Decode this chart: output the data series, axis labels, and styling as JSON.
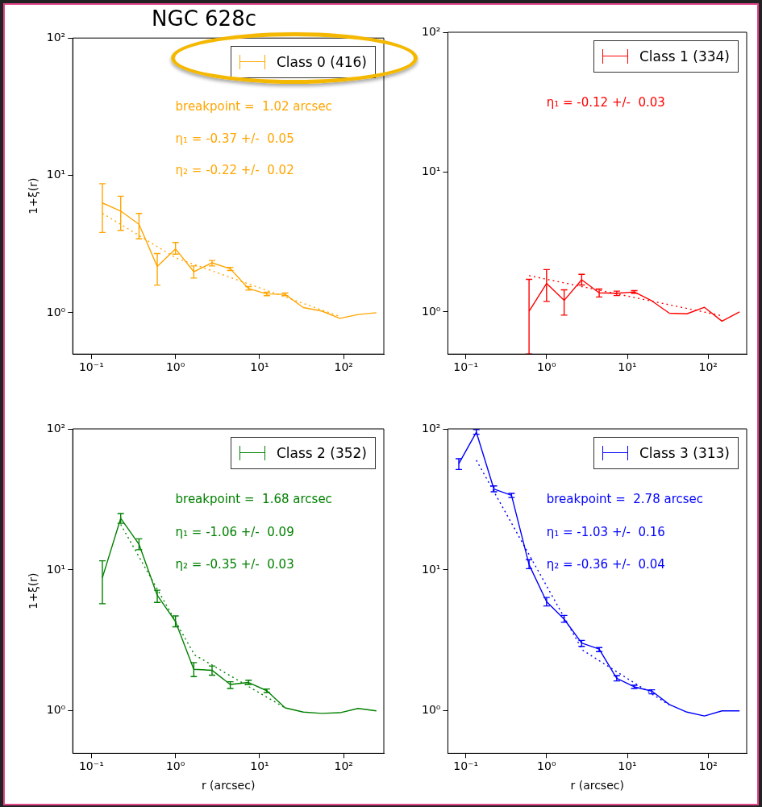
{
  "chart_data": [
    {
      "type": "line",
      "title": "NGC 628c",
      "ylabel": "1+ξ(r)",
      "xlim": [
        0.06,
        300
      ],
      "ylim": [
        0.5,
        100
      ],
      "log": "xy",
      "grid": false,
      "legend": "top right",
      "marker": "none",
      "xticks": [
        {
          "value": 0.1,
          "label": "10⁻¹"
        },
        {
          "value": 1,
          "label": "10⁰"
        },
        {
          "value": 10,
          "label": "10¹"
        },
        {
          "value": 100,
          "label": "10²"
        }
      ],
      "yticks": [
        {
          "value": 1,
          "label": "10⁰"
        },
        {
          "value": 10,
          "label": "10¹"
        },
        {
          "value": 100,
          "label": "10²"
        }
      ],
      "annotations": [
        "breakpoint =  1.02 arcsec",
        "η₁ = -0.37 +/-  0.05",
        "η₂ = -0.22 +/-  0.02"
      ],
      "series": [
        {
          "name": "Class 0 (416)",
          "color": "#ffa500",
          "line_style": "solid",
          "x": [
            0.135,
            0.223,
            0.368,
            0.607,
            1.0,
            1.65,
            2.72,
            4.48,
            7.39,
            12.18,
            20.1,
            33.1,
            54.6,
            90.0,
            148.4,
            244.7
          ],
          "values": [
            6.3,
            5.5,
            4.4,
            2.17,
            2.92,
            1.99,
            2.31,
            2.09,
            1.5,
            1.37,
            1.36,
            1.09,
            1.03,
            0.91,
            0.97,
            1.0
          ],
          "errors": [
            [
              3.84,
              8.7
            ],
            [
              3.98,
              7.05
            ],
            [
              3.45,
              5.28
            ],
            [
              1.59,
              2.7
            ],
            [
              2.67,
              3.25
            ],
            [
              1.79,
              2.19
            ],
            [
              2.19,
              2.4
            ],
            [
              2.03,
              2.14
            ],
            [
              1.46,
              1.55
            ],
            [
              1.33,
              1.41
            ],
            [
              1.33,
              1.39
            ],
            null,
            null,
            null,
            null,
            null
          ]
        },
        {
          "color": "#ffa500",
          "line_style": "dotted",
          "x": [
            0.135,
            1.02,
            90.0
          ],
          "values": [
            5.3,
            2.5,
            0.94
          ]
        }
      ]
    },
    {
      "type": "line",
      "xlim": [
        0.06,
        300
      ],
      "ylim": [
        0.5,
        100
      ],
      "log": "xy",
      "grid": false,
      "legend": "top right",
      "marker": "none",
      "xticks": [
        {
          "value": 0.1,
          "label": "10⁻¹"
        },
        {
          "value": 1,
          "label": "10⁰"
        },
        {
          "value": 10,
          "label": "10¹"
        },
        {
          "value": 100,
          "label": "10²"
        }
      ],
      "yticks": [
        {
          "value": 1,
          "label": "10⁰"
        },
        {
          "value": 10,
          "label": "10¹"
        },
        {
          "value": 100,
          "label": "10²"
        }
      ],
      "annotations": [
        "η₁ = -0.12 +/-  0.03"
      ],
      "series": [
        {
          "name": "Class 1 (334)",
          "color": "#ff0000",
          "line_style": "solid",
          "x": [
            0.607,
            1.0,
            1.65,
            2.72,
            4.48,
            7.39,
            12.18,
            20.1,
            33.1,
            54.6,
            90.0,
            148.4,
            244.7
          ],
          "values": [
            1.01,
            1.6,
            1.21,
            1.7,
            1.37,
            1.36,
            1.39,
            1.2,
            0.98,
            0.97,
            1.08,
            0.86,
            1.0
          ],
          "errors": [
            [
              0.5,
              1.71
            ],
            [
              1.19,
              2.01
            ],
            [
              0.95,
              1.44
            ],
            [
              1.56,
              1.86
            ],
            [
              1.28,
              1.46
            ],
            [
              1.31,
              1.41
            ],
            [
              1.36,
              1.42
            ],
            null,
            null,
            null,
            null,
            null,
            null
          ]
        },
        {
          "color": "#ff0000",
          "line_style": "dotted",
          "x": [
            0.607,
            148.4
          ],
          "values": [
            1.82,
            0.94
          ]
        }
      ]
    },
    {
      "type": "line",
      "xlabel": "r (arcsec)",
      "ylabel": "1+ξ(r)",
      "xlim": [
        0.06,
        300
      ],
      "ylim": [
        0.5,
        100
      ],
      "log": "xy",
      "grid": false,
      "legend": "top right",
      "marker": "none",
      "xticks": [
        {
          "value": 0.1,
          "label": "10⁻¹"
        },
        {
          "value": 1,
          "label": "10⁰"
        },
        {
          "value": 10,
          "label": "10¹"
        },
        {
          "value": 100,
          "label": "10²"
        }
      ],
      "yticks": [
        {
          "value": 1,
          "label": "10⁰"
        },
        {
          "value": 10,
          "label": "10¹"
        },
        {
          "value": 100,
          "label": "10²"
        }
      ],
      "annotations": [
        "breakpoint =  1.68 arcsec",
        "η₁ = -1.06 +/-  0.09",
        "η₂ = -0.35 +/-  0.03"
      ],
      "series": [
        {
          "name": "Class 2 (352)",
          "color": "#008000",
          "line_style": "solid",
          "x": [
            0.135,
            0.223,
            0.368,
            0.607,
            1.0,
            1.65,
            2.72,
            4.48,
            7.39,
            12.18,
            20.1,
            33.1,
            54.6,
            90.0,
            148.4,
            244.7
          ],
          "values": [
            8.8,
            23.2,
            15.2,
            6.6,
            4.3,
            1.97,
            1.94,
            1.54,
            1.59,
            1.39,
            1.05,
            0.98,
            0.96,
            0.97,
            1.04,
            1.0
          ],
          "errors": [
            [
              5.75,
              11.6
            ],
            [
              21.4,
              25.1
            ],
            [
              13.9,
              16.6
            ],
            [
              5.88,
              7.17
            ],
            [
              3.95,
              4.71
            ],
            [
              1.75,
              2.2
            ],
            [
              1.79,
              2.08
            ],
            [
              1.44,
              1.61
            ],
            [
              1.54,
              1.65
            ],
            [
              1.35,
              1.43
            ],
            null,
            null,
            null,
            null,
            null,
            null
          ]
        },
        {
          "color": "#008000",
          "line_style": "dotted",
          "x": [
            0.223,
            1.68,
            20.1
          ],
          "values": [
            21,
            2.5,
            1.05
          ]
        }
      ]
    },
    {
      "type": "line",
      "xlabel": "r (arcsec)",
      "xlim": [
        0.06,
        300
      ],
      "ylim": [
        0.5,
        100
      ],
      "log": "xy",
      "grid": false,
      "legend": "top right",
      "xticks": [
        {
          "value": 0.1,
          "label": "10⁻¹"
        },
        {
          "value": 1,
          "label": "10⁰"
        },
        {
          "value": 10,
          "label": "10¹"
        },
        {
          "value": 100,
          "label": "10²"
        }
      ],
      "yticks": [
        {
          "value": 1,
          "label": "10⁰"
        },
        {
          "value": 10,
          "label": "10¹"
        },
        {
          "value": 100,
          "label": "10²"
        }
      ],
      "annotations": [
        "breakpoint =  2.78 arcsec",
        "η₁ = -1.03 +/-  0.16",
        "η₂ = -0.36 +/-  0.04"
      ],
      "series": [
        {
          "name": "Class 3 (313)",
          "color": "#0000ff",
          "line_style": "solid",
          "x": [
            0.082,
            0.135,
            0.223,
            0.368,
            0.607,
            1.0,
            1.65,
            2.72,
            4.48,
            7.39,
            12.18,
            20.1,
            33.1,
            54.6,
            90.0,
            148.4,
            244.7
          ],
          "values": [
            56.7,
            94.8,
            37.4,
            33.8,
            10.9,
            5.96,
            4.47,
            3.03,
            2.74,
            1.7,
            1.48,
            1.38,
            1.11,
            0.98,
            0.92,
            1.0,
            1.0
          ],
          "errors": [
            [
              51.5,
              61.4
            ],
            [
              91.6,
              99
            ],
            [
              35.8,
              39.4
            ],
            [
              32.6,
              34.9
            ],
            [
              10.2,
              11.8
            ],
            [
              5.55,
              6.37
            ],
            [
              4.25,
              4.75
            ],
            [
              2.87,
              3.16
            ],
            [
              2.63,
              2.81
            ],
            [
              1.63,
              1.78
            ],
            [
              1.44,
              1.52
            ],
            [
              1.32,
              1.41
            ],
            null,
            null,
            null,
            null,
            null
          ]
        },
        {
          "color": "#0000ff",
          "line_style": "dotted",
          "x": [
            0.135,
            2.78,
            33.1
          ],
          "values": [
            60,
            2.7,
            1.1
          ]
        }
      ]
    }
  ]
}
